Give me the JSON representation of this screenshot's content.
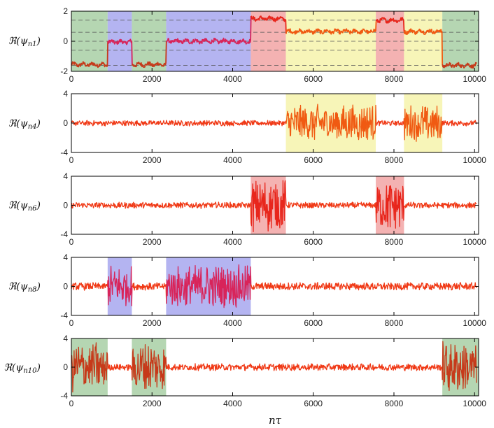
{
  "figure": {
    "xlabel": "nτ",
    "colors": {
      "series": "#f03a17",
      "green": "#a8cfa4",
      "blue": "#a7a7ee",
      "red": "#f2a5a5",
      "yellow": "#f6f3ac",
      "blend_blue": "#d8245a",
      "blend_green": "#c63a1a",
      "blend_red": "#e8261c",
      "blend_yellow": "#f05a12"
    }
  },
  "chart_data": [
    {
      "id": "n1",
      "type": "line",
      "ylabel": "ℜ(ψn1)",
      "ylabel_main": "ℜ(ψ",
      "ylabel_sub": "n1",
      "ylabel_close": ")",
      "xlim": [
        0,
        10100
      ],
      "ylim": [
        -2,
        2
      ],
      "xticks": [
        0,
        2000,
        4000,
        6000,
        8000,
        10000
      ],
      "yticks": [
        -2,
        0,
        2
      ],
      "dashed_levels": [
        -1.6,
        -0.6,
        0.0,
        0.6,
        1.4
      ],
      "regions": [
        {
          "start": 0,
          "end": 900,
          "color": "green"
        },
        {
          "start": 900,
          "end": 1500,
          "color": "blue"
        },
        {
          "start": 1500,
          "end": 2350,
          "color": "green"
        },
        {
          "start": 2350,
          "end": 4450,
          "color": "blue"
        },
        {
          "start": 4450,
          "end": 5320,
          "color": "red"
        },
        {
          "start": 5320,
          "end": 7550,
          "color": "yellow"
        },
        {
          "start": 7550,
          "end": 8250,
          "color": "red"
        },
        {
          "start": 8250,
          "end": 9200,
          "color": "yellow"
        },
        {
          "start": 9200,
          "end": 10100,
          "color": "green"
        }
      ],
      "levels": [
        {
          "start": 0,
          "end": 900,
          "value": -1.55
        },
        {
          "start": 900,
          "end": 1500,
          "value": -0.05
        },
        {
          "start": 1500,
          "end": 2350,
          "value": -1.55
        },
        {
          "start": 2350,
          "end": 4450,
          "value": 0.0
        },
        {
          "start": 4450,
          "end": 5320,
          "value": 1.5
        },
        {
          "start": 5320,
          "end": 7550,
          "value": 0.65
        },
        {
          "start": 7550,
          "end": 8250,
          "value": 1.4
        },
        {
          "start": 8250,
          "end": 9200,
          "value": 0.65
        },
        {
          "start": 9200,
          "end": 10100,
          "value": -1.6
        }
      ],
      "noise": 0.12,
      "base_amp": 0
    },
    {
      "id": "n4",
      "type": "line",
      "ylabel": "ℜ(ψn4)",
      "ylabel_main": "ℜ(ψ",
      "ylabel_sub": "n4",
      "ylabel_close": ")",
      "xlim": [
        0,
        10100
      ],
      "ylim": [
        -4,
        4
      ],
      "xticks": [
        0,
        2000,
        4000,
        6000,
        8000,
        10000
      ],
      "yticks": [
        -4,
        0,
        4
      ],
      "regions": [
        {
          "start": 5320,
          "end": 7550,
          "color": "yellow"
        },
        {
          "start": 8250,
          "end": 9200,
          "color": "yellow"
        }
      ],
      "base_amp": 0.4,
      "active_amp": 2.6
    },
    {
      "id": "n6",
      "type": "line",
      "ylabel": "ℜ(ψn6)",
      "ylabel_main": "ℜ(ψ",
      "ylabel_sub": "n6",
      "ylabel_close": ")",
      "xlim": [
        0,
        10100
      ],
      "ylim": [
        -4,
        4
      ],
      "xticks": [
        0,
        2000,
        4000,
        6000,
        8000,
        10000
      ],
      "yticks": [
        -4,
        0,
        4
      ],
      "regions": [
        {
          "start": 4450,
          "end": 5320,
          "color": "red"
        },
        {
          "start": 7550,
          "end": 8250,
          "color": "red"
        }
      ],
      "base_amp": 0.45,
      "active_amp": 3.8
    },
    {
      "id": "n8",
      "type": "line",
      "ylabel": "ℜ(ψn8)",
      "ylabel_main": "ℜ(ψ",
      "ylabel_sub": "n8",
      "ylabel_close": ")",
      "xlim": [
        0,
        10100
      ],
      "ylim": [
        -4,
        4
      ],
      "xticks": [
        0,
        2000,
        4000,
        6000,
        8000,
        10000
      ],
      "yticks": [
        -4,
        0,
        4
      ],
      "regions": [
        {
          "start": 900,
          "end": 1500,
          "color": "blue"
        },
        {
          "start": 2350,
          "end": 4450,
          "color": "blue"
        }
      ],
      "base_amp": 0.55,
      "active_amp": 3.0
    },
    {
      "id": "n10",
      "type": "line",
      "ylabel": "ℜ(ψn10)",
      "ylabel_main": "ℜ(ψ",
      "ylabel_sub": "n10",
      "ylabel_close": ")",
      "xlim": [
        0,
        10100
      ],
      "ylim": [
        -4,
        4
      ],
      "xticks": [
        0,
        2000,
        4000,
        6000,
        8000,
        10000
      ],
      "yticks": [
        -4,
        0,
        4
      ],
      "regions": [
        {
          "start": 0,
          "end": 900,
          "color": "green"
        },
        {
          "start": 1500,
          "end": 2350,
          "color": "green"
        },
        {
          "start": 9200,
          "end": 10100,
          "color": "green"
        }
      ],
      "base_amp": 0.5,
      "active_amp": 3.7
    }
  ]
}
